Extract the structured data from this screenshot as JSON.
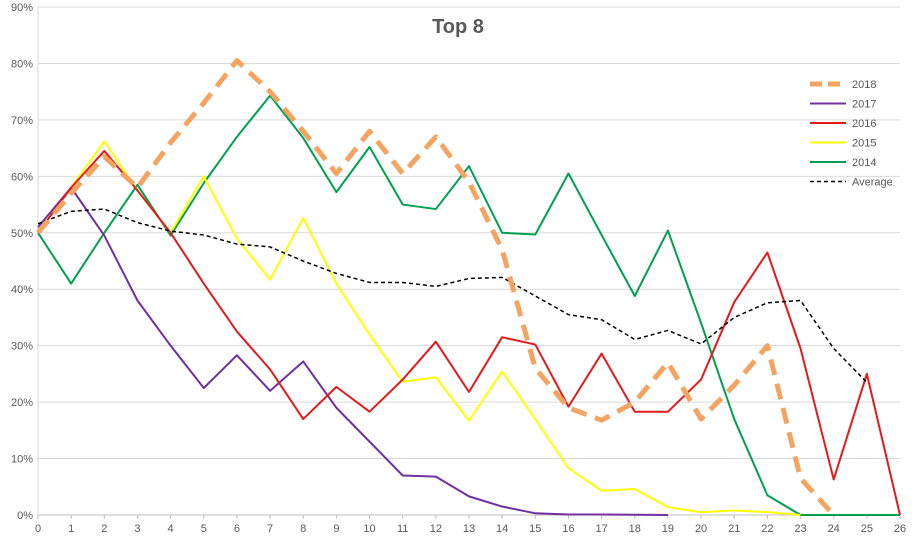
{
  "chart_data": {
    "type": "line",
    "title": "Top 8",
    "xlabel": "",
    "ylabel": "",
    "x": [
      0,
      1,
      2,
      3,
      4,
      5,
      6,
      7,
      8,
      9,
      10,
      11,
      12,
      13,
      14,
      15,
      16,
      17,
      18,
      19,
      20,
      21,
      22,
      23,
      24,
      25,
      26
    ],
    "x_tick_labels": [
      "0",
      "1",
      "2",
      "3",
      "4",
      "5",
      "6",
      "7",
      "8",
      "9",
      "10",
      "11",
      "12",
      "13",
      "14",
      "15",
      "16",
      "17",
      "18",
      "19",
      "20",
      "21",
      "22",
      "23",
      "24",
      "25",
      "26"
    ],
    "ylim": [
      0,
      90
    ],
    "y_ticks": [
      0,
      10,
      20,
      30,
      40,
      50,
      60,
      70,
      80,
      90
    ],
    "y_tick_labels": [
      "0%",
      "10%",
      "20%",
      "30%",
      "40%",
      "50%",
      "60%",
      "70%",
      "80%",
      "90%"
    ],
    "grid": "horizontal",
    "legend_position": "right",
    "series": [
      {
        "name": "2018",
        "color": "#f4a460",
        "style": "dashed-thick",
        "values": [
          50,
          57,
          63.5,
          58,
          66,
          73,
          80.5,
          75,
          68,
          60.5,
          68,
          60.5,
          67,
          59,
          47,
          26,
          19,
          16.8,
          20,
          27,
          17,
          23,
          30,
          6.5,
          0,
          null,
          null
        ]
      },
      {
        "name": "2017",
        "color": "#7030a0",
        "style": "solid",
        "values": [
          51,
          58,
          49.5,
          38,
          30,
          22.5,
          28.3,
          22,
          27.2,
          19,
          13,
          7,
          6.8,
          3.3,
          1.5,
          0.3,
          0.1,
          0.1,
          0.05,
          0,
          null,
          null,
          null,
          null,
          null,
          null,
          null
        ]
      },
      {
        "name": "2016",
        "color": "#e31a1c",
        "style": "solid",
        "values": [
          50,
          58,
          64.5,
          57.5,
          50,
          41,
          32.5,
          25.8,
          17,
          22.7,
          18.3,
          24,
          30.7,
          21.8,
          31.5,
          30.2,
          19.2,
          28.6,
          18.3,
          18.3,
          24,
          37.7,
          46.5,
          29.5,
          6.3,
          25,
          0
        ]
      },
      {
        "name": "2015",
        "color": "#ffff00",
        "style": "solid",
        "values": [
          50,
          58,
          66.2,
          57.5,
          50,
          60,
          49,
          41.7,
          52.6,
          41,
          32,
          23.6,
          24.4,
          16.7,
          25.4,
          17,
          8.3,
          4.3,
          4.6,
          1.4,
          0.5,
          0.8,
          0.5,
          0,
          null,
          null,
          null
        ]
      },
      {
        "name": "2014",
        "color": "#00a050",
        "style": "solid",
        "values": [
          50,
          41,
          50,
          58.5,
          49.5,
          58.8,
          67,
          74.3,
          66.8,
          57.2,
          65.2,
          55,
          54.2,
          61.8,
          50,
          49.7,
          60.5,
          49.6,
          38.8,
          50.4,
          34,
          17,
          3.5,
          0,
          0,
          0,
          0
        ]
      },
      {
        "name": "Average",
        "color": "#000000",
        "style": "dashed-thin",
        "values": [
          51.6,
          53.8,
          54.2,
          51.8,
          50.3,
          49.6,
          48,
          47.5,
          45,
          42.8,
          41.2,
          41.2,
          40.5,
          41.9,
          42.1,
          38.8,
          35.5,
          34.6,
          31.1,
          32.7,
          30.3,
          35,
          37.6,
          38,
          29.5,
          23.5,
          null
        ]
      }
    ]
  }
}
